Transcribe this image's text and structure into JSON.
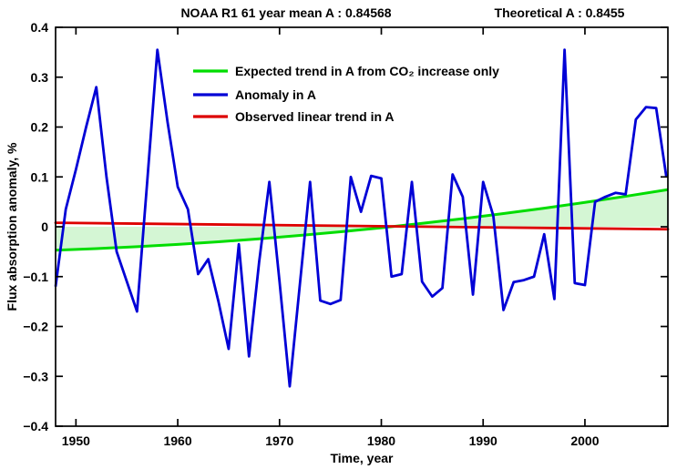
{
  "title": {
    "left": "NOAA R1 61 year mean A : 0.84568",
    "right": "Theoretical A : 0.8455"
  },
  "chart_data": {
    "type": "line",
    "title": "NOAA R1 61 year mean A : 0.84568    Theoretical A : 0.8455",
    "xlabel": "Time, year",
    "ylabel": "Flux absorption anomaly, %",
    "xlim": [
      1948,
      2008.15
    ],
    "ylim": [
      -0.4,
      0.4
    ],
    "grid": false,
    "x_tick_values": [
      1950,
      1960,
      1970,
      1980,
      1990,
      2000
    ],
    "x_tick_labels": [
      "1950",
      "1960",
      "1970",
      "1980",
      "1990",
      "2000"
    ],
    "y_tick_values": [
      -0.4,
      -0.3,
      -0.2,
      -0.1,
      0,
      0.1,
      0.2,
      0.3,
      0.4
    ],
    "y_tick_labels": [
      "−0.4",
      "−0.3",
      "−0.2",
      "−0.1",
      "0",
      "0.1",
      "0.2",
      "0.3",
      "0.4"
    ],
    "colors": {
      "expected_trend": "#00dd00",
      "anomaly": "#0000d6",
      "observed_trend": "#dd0000",
      "fill_under_expected_trend": "#d4f6d4",
      "axis": "#000000"
    },
    "legend": {
      "position": "upper-left-inside",
      "border": false,
      "items": [
        {
          "label": "Expected trend in A from CO₂ increase only",
          "color": "#00dd00"
        },
        {
          "label": "Anomaly in A",
          "color": "#0000d6"
        },
        {
          "label": "Observed linear trend in A",
          "color": "#dd0000"
        }
      ]
    },
    "series": [
      {
        "name": "Expected trend in A from CO₂ increase only",
        "style": "smooth-curve-with-fill-to-zero",
        "points": [
          [
            1948,
            -0.047
          ],
          [
            1952,
            -0.0438
          ],
          [
            1956,
            -0.0399
          ],
          [
            1960,
            -0.0354
          ],
          [
            1964,
            -0.0302
          ],
          [
            1968,
            -0.0242
          ],
          [
            1972,
            -0.0174
          ],
          [
            1976,
            -0.0101
          ],
          [
            1980,
            -0.002
          ],
          [
            1984,
            0.0068
          ],
          [
            1988,
            0.0162
          ],
          [
            1992,
            0.0264
          ],
          [
            1996,
            0.0373
          ],
          [
            2000,
            0.0488
          ],
          [
            2004,
            0.0611
          ],
          [
            2008,
            0.074
          ],
          [
            2008.15,
            0.0744
          ]
        ]
      },
      {
        "name": "Anomaly in A",
        "style": "polyline",
        "start_year": 1948,
        "step_years": 1,
        "values": [
          -0.12,
          0.035,
          0.115,
          0.2,
          0.28,
          0.1,
          -0.05,
          -0.11,
          -0.17,
          0.09,
          0.355,
          0.21,
          0.08,
          0.035,
          -0.095,
          -0.065,
          -0.15,
          -0.245,
          -0.035,
          -0.26,
          -0.07,
          0.09,
          -0.11,
          -0.32,
          -0.115,
          0.09,
          -0.148,
          -0.155,
          -0.147,
          0.1,
          0.03,
          0.102,
          0.097,
          -0.1,
          -0.095,
          0.09,
          -0.11,
          -0.14,
          -0.123,
          0.105,
          0.06,
          -0.136,
          0.09,
          0.022,
          -0.167,
          -0.111,
          -0.107,
          -0.1,
          -0.015,
          -0.145,
          0.355,
          -0.113,
          -0.117,
          0.05,
          0.06,
          0.068,
          0.065,
          0.215,
          0.24,
          0.238,
          0.1
        ]
      },
      {
        "name": "Observed linear trend in A",
        "style": "straight-line",
        "points": [
          [
            1948,
            0.008
          ],
          [
            2008.15,
            -0.005
          ]
        ]
      }
    ]
  }
}
